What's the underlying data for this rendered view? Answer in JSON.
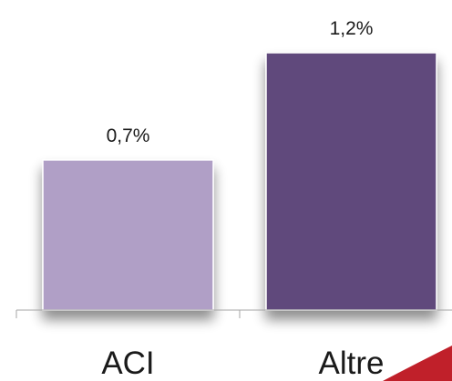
{
  "chart_data": {
    "type": "bar",
    "categories": [
      "ACI",
      "Altre"
    ],
    "values": [
      0.7,
      1.2
    ],
    "value_labels": [
      "0,7%",
      "1,2%"
    ],
    "colors": [
      "#b09fc6",
      "#604a7b"
    ],
    "title": "",
    "xlabel": "",
    "ylabel": "",
    "unit": "%",
    "ylim": [
      0,
      1.2
    ],
    "grid": false,
    "legend": "none"
  }
}
